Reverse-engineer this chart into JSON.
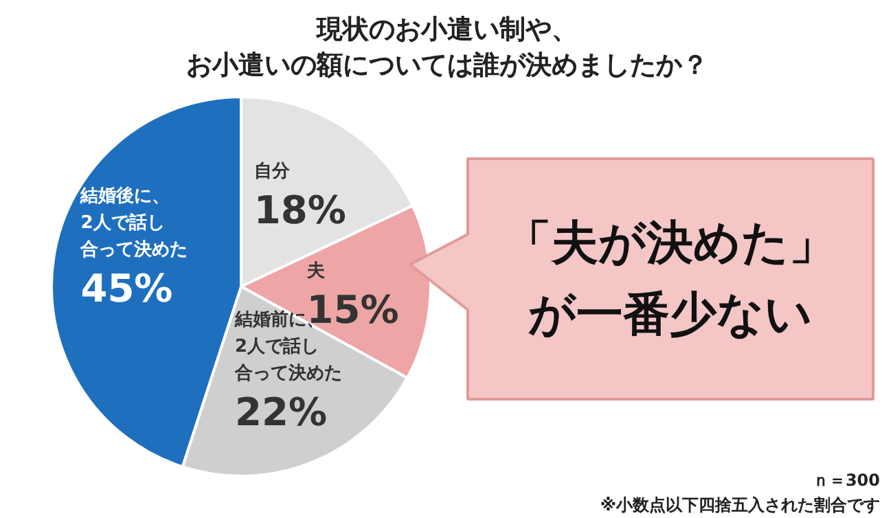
{
  "chart_data": {
    "type": "pie",
    "title": "現状のお小遣い制や、お小遣いの額については誰が決めましたか？",
    "categories": [
      "自分",
      "夫",
      "結婚前に、2人で話し合って決めた",
      "結婚後に、2人で話し合って決めた"
    ],
    "values": [
      18,
      15,
      22,
      45
    ],
    "value_labels": [
      "18%",
      "15%",
      "22%",
      "45%"
    ],
    "colors": [
      "#e3e3e3",
      "#eda5a5",
      "#cfcfcf",
      "#1f6fbf"
    ],
    "annotations": [
      "「夫が決めた」が一番少ない",
      "ｎ＝300",
      "※小数点以下四捨五入された割合です"
    ]
  }
}
